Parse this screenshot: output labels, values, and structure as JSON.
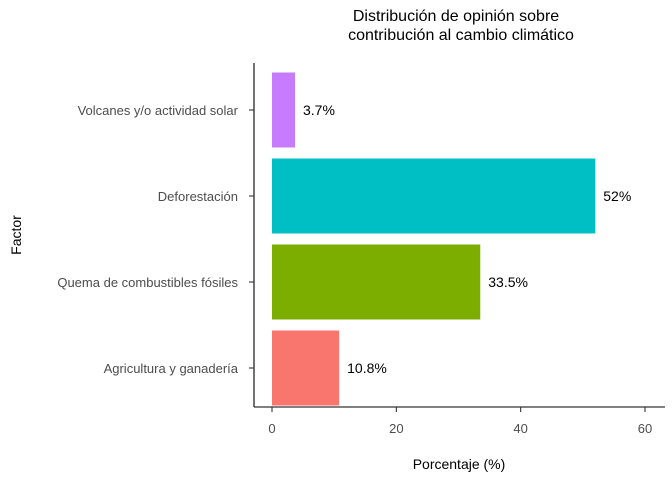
{
  "chart_data": {
    "type": "bar",
    "orientation": "horizontal",
    "title": [
      "Distribución de opinión sobre",
      "contribución al cambio climático"
    ],
    "xlabel": "Porcentaje (%)",
    "ylabel": "Factor",
    "xlim": [
      0,
      60
    ],
    "xticks": [
      "0",
      "20",
      "40",
      "60"
    ],
    "categories": [
      "Agricultura y ganadería",
      "Quema de combustibles fósiles",
      "Deforestación",
      "Volcanes y/o actividad solar"
    ],
    "values": [
      10.8,
      33.5,
      52,
      3.7
    ],
    "value_labels": [
      "10.8%",
      "33.5%",
      "52%",
      "3.7%"
    ],
    "colors": [
      "#F8766D",
      "#7CAE00",
      "#00BFC4",
      "#C77CFF"
    ],
    "grid": false,
    "legend": "none"
  }
}
